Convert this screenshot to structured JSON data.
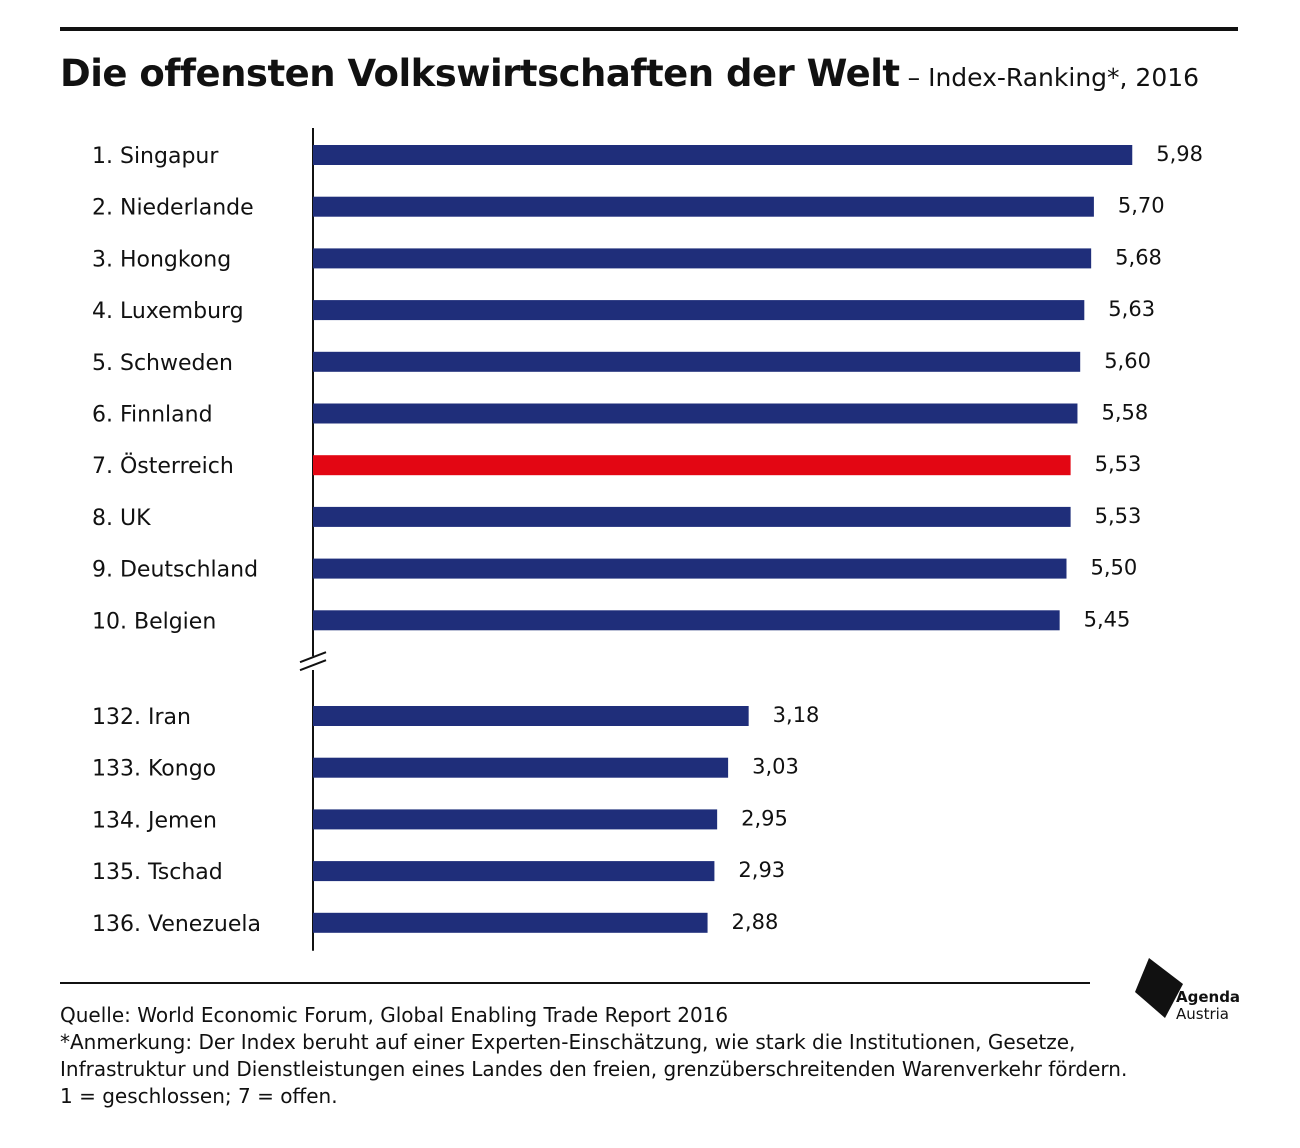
{
  "header": {
    "title": "Die offensten Volkswirtschaften der Welt",
    "subtitle": "– Index-Ranking*, 2016"
  },
  "colors": {
    "bar": "#1f2e7a",
    "highlight": "#e30613",
    "text": "#111111"
  },
  "chart_data": {
    "type": "bar",
    "orientation": "horizontal",
    "title": "Die offensten Volkswirtschaften der Welt",
    "subtitle": "– Index-Ranking*, 2016",
    "categories": [
      "1. Singapur",
      "2. Niederlande",
      "3. Hongkong",
      "4. Luxemburg",
      "5. Schweden",
      "6. Finnland",
      "7. Österreich",
      "8. UK",
      "9. Deutschland",
      "10. Belgien",
      "132. Iran",
      "133. Kongo",
      "134. Jemen",
      "135. Tschad",
      "136. Venezuela"
    ],
    "values": [
      5.98,
      5.7,
      5.68,
      5.63,
      5.6,
      5.58,
      5.53,
      5.53,
      5.5,
      5.45,
      3.18,
      3.03,
      2.95,
      2.93,
      2.88
    ],
    "value_labels": [
      "5,98",
      "5,70",
      "5,68",
      "5,63",
      "5,60",
      "5,58",
      "5,53",
      "5,53",
      "5,50",
      "5,45",
      "3,18",
      "3,03",
      "2,95",
      "2,93",
      "2,88"
    ],
    "highlight_index": 6,
    "axis_break_after_index": 9,
    "xlim": [
      0,
      6
    ],
    "grid": false,
    "legend": "none"
  },
  "footer": {
    "source": "Quelle: World Economic Forum, Global Enabling Trade Report 2016",
    "note": "*Anmerkung: Der Index beruht auf einer Experten-Einschätzung, wie stark die Institutionen, Gesetze, Infrastruktur und Dienstleistungen eines Landes den freien, grenzüberschreitenden Warenverkehr fördern. 1 = geschlossen; 7 = offen."
  },
  "logo": {
    "line1": "Agenda",
    "line2": "Austria"
  }
}
